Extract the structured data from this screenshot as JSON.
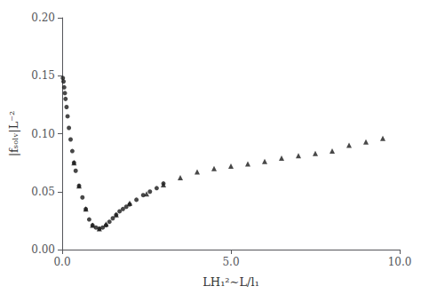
{
  "chart_data": {
    "type": "scatter",
    "x_label": "LH₁²∼L/l₁",
    "y_label": "|fₛₒₗᵥ|L⁻²",
    "xlim": [
      0.0,
      10.0
    ],
    "ylim": [
      0.0,
      0.2
    ],
    "xticks": [
      {
        "value": 0.0,
        "label": "0.0"
      },
      {
        "value": 5.0,
        "label": "5.0"
      },
      {
        "value": 10.0,
        "label": "10.0"
      }
    ],
    "yticks": [
      {
        "value": 0.0,
        "label": "0.00"
      },
      0.05,
      {
        "value": 0.1,
        "label": "0.10"
      },
      0.15,
      {
        "value": 0.2,
        "label": "0.20"
      }
    ],
    "grid": false,
    "series": [
      {
        "color": "#1a1a1a",
        "marker": "circle",
        "x": [
          0.02,
          0.04,
          0.06,
          0.08,
          0.1,
          0.13,
          0.16,
          0.2,
          0.25,
          0.3,
          0.35,
          0.4,
          0.5,
          0.6,
          0.7,
          0.8,
          0.9,
          1.0,
          1.1,
          1.2,
          1.3,
          1.4,
          1.5,
          1.6,
          1.7,
          1.8,
          1.9,
          2.0,
          2.2,
          2.4,
          2.6,
          2.8,
          3.0
        ],
        "values": [
          0.148,
          0.145,
          0.14,
          0.135,
          0.13,
          0.123,
          0.115,
          0.105,
          0.095,
          0.085,
          0.075,
          0.068,
          0.055,
          0.045,
          0.035,
          0.026,
          0.021,
          0.019,
          0.018,
          0.019,
          0.021,
          0.024,
          0.027,
          0.03,
          0.033,
          0.035,
          0.037,
          0.039,
          0.043,
          0.047,
          0.05,
          0.053,
          0.057
        ]
      },
      {
        "color": "#1a1a1a",
        "marker": "triangle",
        "x": [
          0.35,
          0.5,
          0.7,
          0.9,
          1.1,
          1.3,
          1.6,
          2.0,
          2.5,
          3.0,
          3.5,
          4.0,
          4.5,
          5.0,
          5.5,
          6.0,
          6.5,
          7.0,
          7.5,
          8.0,
          8.5,
          9.0,
          9.5
        ],
        "values": [
          0.075,
          0.055,
          0.035,
          0.021,
          0.018,
          0.022,
          0.03,
          0.04,
          0.048,
          0.056,
          0.062,
          0.067,
          0.07,
          0.072,
          0.074,
          0.076,
          0.079,
          0.081,
          0.083,
          0.085,
          0.09,
          0.093,
          0.096
        ]
      }
    ]
  }
}
